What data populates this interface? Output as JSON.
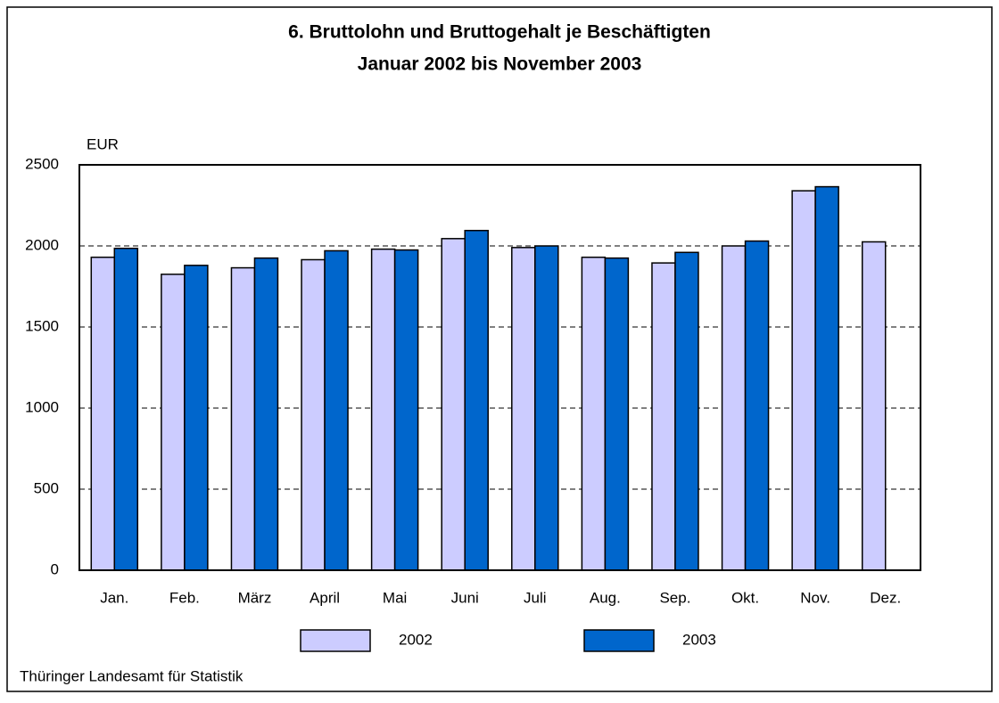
{
  "chart_data": {
    "type": "bar",
    "title": "6. Bruttolohn und Bruttogehalt je Beschäftigten",
    "subtitle": "Januar 2002 bis November 2003",
    "y_label": "EUR",
    "source": "Thüringer Landesamt für Statistik",
    "categories": [
      "Jan.",
      "Feb.",
      "März",
      "April",
      "Mai",
      "Juni",
      "Juli",
      "Aug.",
      "Sep.",
      "Okt.",
      "Nov.",
      "Dez."
    ],
    "series": [
      {
        "name": "2002",
        "color": "#ccccff",
        "values": [
          1930,
          1825,
          1865,
          1915,
          1980,
          2045,
          1990,
          1930,
          1895,
          2000,
          2340,
          2025
        ]
      },
      {
        "name": "2003",
        "color": "#0066cc",
        "values": [
          1985,
          1880,
          1925,
          1970,
          1975,
          2095,
          2000,
          1925,
          1960,
          2030,
          2365,
          null
        ]
      }
    ],
    "ylim": [
      0,
      2500
    ],
    "yticks": [
      0,
      500,
      1000,
      1500,
      2000,
      2500
    ],
    "grid": true
  }
}
